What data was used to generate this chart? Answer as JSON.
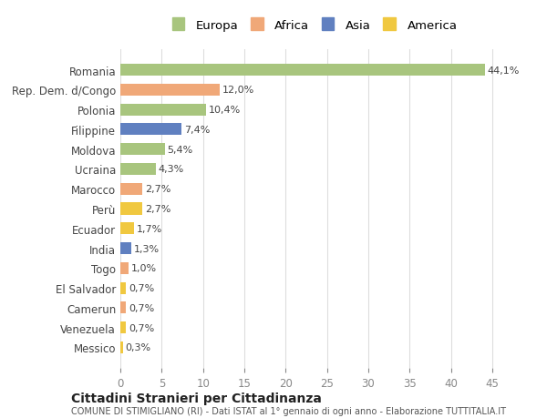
{
  "countries": [
    "Romania",
    "Rep. Dem. d/Congo",
    "Polonia",
    "Filippine",
    "Moldova",
    "Ucraina",
    "Marocco",
    "Perù",
    "Ecuador",
    "India",
    "Togo",
    "El Salvador",
    "Camerun",
    "Venezuela",
    "Messico"
  ],
  "values": [
    44.1,
    12.0,
    10.4,
    7.4,
    5.4,
    4.3,
    2.7,
    2.7,
    1.7,
    1.3,
    1.0,
    0.7,
    0.7,
    0.7,
    0.3
  ],
  "labels": [
    "44,1%",
    "12,0%",
    "10,4%",
    "7,4%",
    "5,4%",
    "4,3%",
    "2,7%",
    "2,7%",
    "1,7%",
    "1,3%",
    "1,0%",
    "0,7%",
    "0,7%",
    "0,7%",
    "0,3%"
  ],
  "continents": [
    "Europa",
    "Africa",
    "Europa",
    "Asia",
    "Europa",
    "Europa",
    "Africa",
    "America",
    "America",
    "Asia",
    "Africa",
    "America",
    "Africa",
    "America",
    "America"
  ],
  "continent_colors": {
    "Europa": "#a8c57e",
    "Africa": "#f0a878",
    "Asia": "#6080c0",
    "America": "#f0c840"
  },
  "legend_order": [
    "Europa",
    "Africa",
    "Asia",
    "America"
  ],
  "title": "Cittadini Stranieri per Cittadinanza",
  "subtitle": "COMUNE DI STIMIGLIANO (RI) - Dati ISTAT al 1° gennaio di ogni anno - Elaborazione TUTTITALIA.IT",
  "xlim": [
    0,
    47
  ],
  "xticks": [
    0,
    5,
    10,
    15,
    20,
    25,
    30,
    35,
    40,
    45
  ],
  "bg_color": "#ffffff",
  "grid_color": "#dddddd"
}
